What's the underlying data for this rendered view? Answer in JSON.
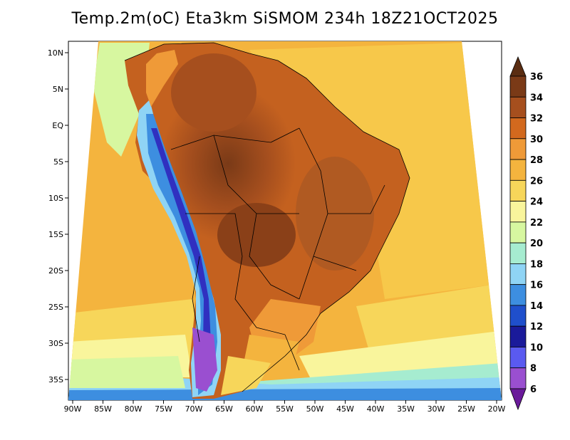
{
  "title": "Temp.2m(oC) Eta3km SiSMOM 234h 18Z21OCT2025",
  "map": {
    "variable": "Temp.2m",
    "units": "oC",
    "model": "Eta3km SiSMOM",
    "forecast_hour": "234h",
    "valid_time": "18Z21OCT2025",
    "x_ticks": [
      "90W",
      "85W",
      "80W",
      "75W",
      "70W",
      "65W",
      "60W",
      "55W",
      "50W",
      "45W",
      "40W",
      "35W",
      "30W",
      "25W",
      "20W"
    ],
    "y_ticks": [
      "10N",
      "5N",
      "EQ",
      "5S",
      "10S",
      "15S",
      "20S",
      "25S",
      "30S",
      "35S"
    ]
  },
  "colorbar": {
    "levels": [
      "36",
      "34",
      "32",
      "30",
      "28",
      "26",
      "24",
      "22",
      "20",
      "18",
      "16",
      "14",
      "12",
      "10",
      "8",
      "6"
    ],
    "colors": {
      "over": "#5a2d12",
      "c34_36": "#7a3a17",
      "c32_34": "#a64f1e",
      "c30_32": "#d2691e",
      "c28_30": "#ef9a38",
      "c26_28": "#f4b43e",
      "c24_26": "#f7d65a",
      "c22_24": "#f9f59c",
      "c20_22": "#d7f7a0",
      "c18_20": "#a6ecd0",
      "c16_18": "#8fd4f5",
      "c14_16": "#3d8ee0",
      "c12_14": "#1f4fcc",
      "c10_12": "#1a1a9a",
      "c8_10": "#5a5af0",
      "c6_8": "#9a4fd0",
      "under": "#6a1a9a",
      "ocean_main": "#f5ac3c",
      "land_hot": "#b05a22",
      "land_very_hot": "#8a4018",
      "andes_cold": "#3030c0",
      "border": "#000000"
    }
  }
}
